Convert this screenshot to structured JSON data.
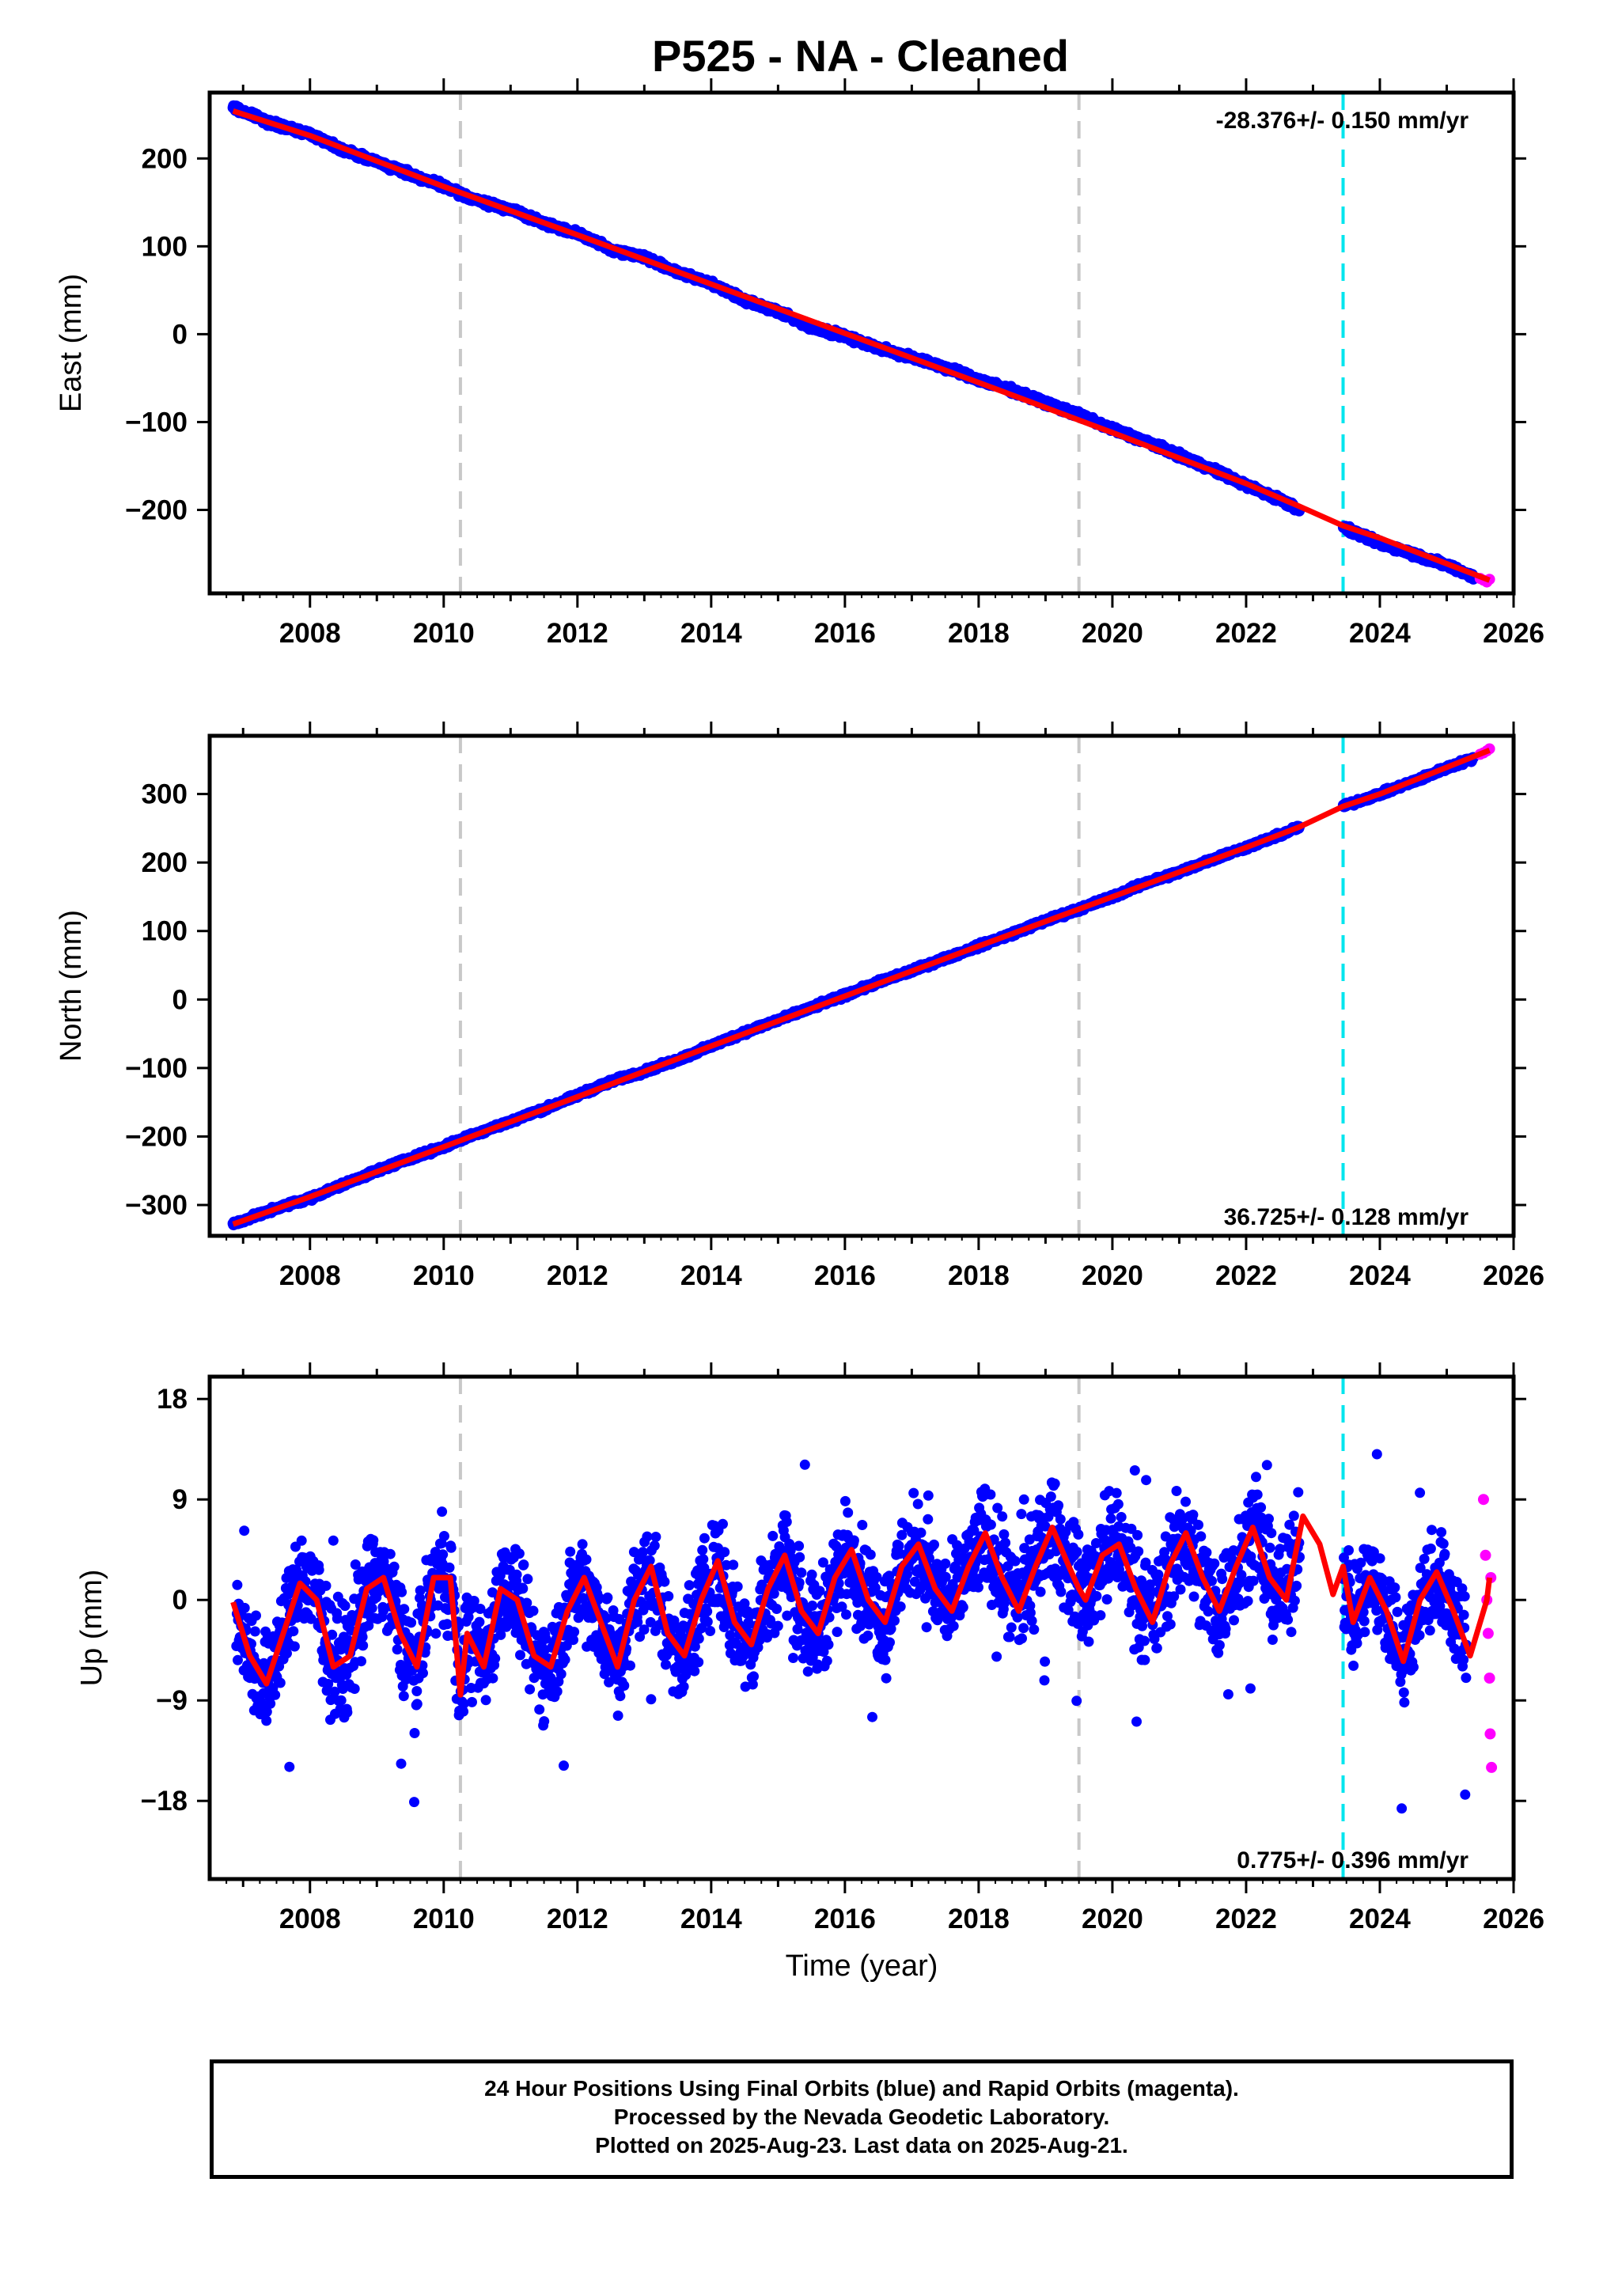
{
  "title": "P525  - NA - Cleaned",
  "footer": {
    "line1": "24 Hour Positions Using Final Orbits (blue) and Rapid Orbits (magenta).",
    "line2": "Processed by the Nevada Geodetic Laboratory.",
    "line3": "Plotted on 2025-Aug-23. Last data on 2025-Aug-21."
  },
  "colors": {
    "final": "#0000ff",
    "rapid": "#ff00ff",
    "model": "#ff0000",
    "equipment_change": "#c8c8c8",
    "earthquake": "#00e5ee"
  },
  "chart_data": [
    {
      "type": "scatter",
      "panel": "east",
      "ylabel": "East (mm)",
      "xlabel": "",
      "xlim": [
        2006.5,
        2026.0
      ],
      "ylim": [
        -295,
        275
      ],
      "x_ticks": [
        2008,
        2010,
        2012,
        2014,
        2016,
        2018,
        2020,
        2022,
        2024,
        2026
      ],
      "y_ticks": [
        200,
        100,
        0,
        -100,
        -200
      ],
      "y_tick_labels": [
        "200",
        "100",
        "0",
        "−100",
        "−200"
      ],
      "rate": "-28.376+/- 0.150 mm/yr",
      "rate_position": "top-right",
      "equipment_change_years": [
        2010.25,
        2019.5
      ],
      "earthquake_years": [
        2023.45
      ],
      "data_gap": [
        2022.8,
        2023.45
      ],
      "series": [
        {
          "kind": "final",
          "x": [
            2006.85,
            2007.5,
            2008.0,
            2008.5,
            2009.0,
            2009.5,
            2010.0,
            2010.5,
            2011.0,
            2011.5,
            2012.0,
            2012.5,
            2013.0,
            2013.5,
            2014.0,
            2014.5,
            2015.0,
            2015.5,
            2016.0,
            2016.5,
            2017.0,
            2017.5,
            2018.0,
            2018.5,
            2019.0,
            2019.5,
            2020.0,
            2020.5,
            2021.0,
            2021.5,
            2022.0,
            2022.5,
            2022.8,
            2023.45,
            2024.0,
            2024.5,
            2025.0,
            2025.4
          ],
          "y": [
            258,
            238,
            228,
            210,
            196,
            182,
            168,
            152,
            142,
            126,
            115,
            96,
            88,
            70,
            58,
            38,
            26,
            8,
            -2,
            -16,
            -26,
            -38,
            -52,
            -64,
            -78,
            -92,
            -108,
            -122,
            -138,
            -154,
            -172,
            -188,
            -200,
            -220,
            -238,
            -250,
            -263,
            -276
          ]
        },
        {
          "kind": "rapid",
          "x": [
            2025.5,
            2025.55,
            2025.6,
            2025.64
          ],
          "y": [
            -278,
            -280,
            -282,
            -279
          ]
        }
      ],
      "model": {
        "x": [
          2006.85,
          2008.0,
          2010.0,
          2012.0,
          2014.0,
          2016.0,
          2018.0,
          2020.0,
          2022.0,
          2022.8,
          2023.45,
          2024.0,
          2025.64
        ],
        "y": [
          254,
          226,
          168,
          113,
          57,
          1,
          -55,
          -112,
          -170,
          -196,
          -218,
          -232,
          -280
        ]
      }
    },
    {
      "type": "scatter",
      "panel": "north",
      "ylabel": "North (mm)",
      "xlabel": "",
      "xlim": [
        2006.5,
        2026.0
      ],
      "ylim": [
        -345,
        385
      ],
      "x_ticks": [
        2008,
        2010,
        2012,
        2014,
        2016,
        2018,
        2020,
        2022,
        2024,
        2026
      ],
      "y_ticks": [
        300,
        200,
        100,
        0,
        -100,
        -200,
        -300
      ],
      "y_tick_labels": [
        "300",
        "200",
        "100",
        "0",
        "−100",
        "−200",
        "−300"
      ],
      "rate": "36.725+/- 0.128 mm/yr",
      "rate_position": "bottom-right",
      "equipment_change_years": [
        2010.25,
        2019.5
      ],
      "earthquake_years": [
        2023.45
      ],
      "data_gap": [
        2022.8,
        2023.45
      ],
      "series": [
        {
          "kind": "final",
          "x": [
            2006.85,
            2007.5,
            2008.0,
            2008.5,
            2009.0,
            2009.5,
            2010.0,
            2010.5,
            2011.0,
            2011.5,
            2012.0,
            2012.5,
            2013.0,
            2013.5,
            2014.0,
            2014.5,
            2015.0,
            2015.5,
            2016.0,
            2016.5,
            2017.0,
            2017.5,
            2018.0,
            2018.5,
            2019.0,
            2019.5,
            2020.0,
            2020.5,
            2021.0,
            2021.5,
            2022.0,
            2022.5,
            2022.8,
            2023.45,
            2024.0,
            2024.5,
            2025.0,
            2025.4
          ],
          "y": [
            -328,
            -305,
            -290,
            -270,
            -250,
            -232,
            -215,
            -195,
            -178,
            -160,
            -140,
            -120,
            -105,
            -88,
            -68,
            -48,
            -30,
            -12,
            6,
            25,
            42,
            60,
            78,
            96,
            115,
            132,
            150,
            170,
            186,
            205,
            222,
            240,
            252,
            282,
            300,
            318,
            338,
            352
          ]
        },
        {
          "kind": "rapid",
          "x": [
            2025.5,
            2025.55,
            2025.6,
            2025.64
          ],
          "y": [
            358,
            360,
            363,
            366
          ]
        }
      ],
      "model": {
        "x": [
          2006.85,
          2008.0,
          2010.0,
          2012.0,
          2014.0,
          2016.0,
          2018.0,
          2020.0,
          2022.0,
          2022.8,
          2023.45,
          2024.0,
          2025.64
        ],
        "y": [
          -328,
          -288,
          -215,
          -142,
          -68,
          5,
          78,
          150,
          222,
          252,
          282,
          300,
          364
        ]
      }
    },
    {
      "type": "scatter",
      "panel": "up",
      "ylabel": "Up (mm)",
      "xlabel": "Time (year)",
      "xlim": [
        2006.5,
        2026.0
      ],
      "ylim": [
        -25,
        20
      ],
      "x_ticks": [
        2008,
        2010,
        2012,
        2014,
        2016,
        2018,
        2020,
        2022,
        2024,
        2026
      ],
      "y_ticks": [
        18,
        9,
        0,
        -9,
        -18
      ],
      "y_tick_labels": [
        "18",
        "9",
        "0",
        "−9",
        "−18"
      ],
      "rate": "0.775+/- 0.396 mm/yr",
      "rate_position": "bottom-right",
      "equipment_change_years": [
        2010.25,
        2019.5
      ],
      "earthquake_years": [
        2023.45
      ],
      "data_gap": [
        2022.8,
        2023.45
      ],
      "series": [
        {
          "kind": "final",
          "x": [
            2006.9,
            2007.2,
            2007.7,
            2008.2,
            2008.7,
            2009.2,
            2009.8,
            2010.3,
            2010.8,
            2011.3,
            2011.8,
            2012.3,
            2012.8,
            2013.3,
            2013.8,
            2014.3,
            2014.8,
            2015.3,
            2015.8,
            2016.3,
            2016.8,
            2017.3,
            2017.8,
            2018.3,
            2018.8,
            2019.3,
            2019.8,
            2020.3,
            2020.8,
            2021.3,
            2021.8,
            2022.3,
            2022.7,
            2023.5,
            2023.9,
            2024.3,
            2024.8,
            2025.3
          ],
          "y": [
            2,
            -8,
            4,
            -9,
            3,
            -6,
            4,
            -10,
            2,
            -8,
            3,
            -9,
            4,
            -7,
            5,
            -6,
            6,
            -5,
            7,
            -4,
            8,
            -3,
            8,
            -2,
            9,
            -1,
            7,
            -3,
            8,
            -2,
            9,
            -1,
            9,
            -3,
            3,
            -8,
            4,
            -9
          ]
        },
        {
          "kind": "rapid",
          "x": [
            2025.55,
            2025.58,
            2025.6,
            2025.62,
            2025.64,
            2025.65,
            2025.66,
            2025.67
          ],
          "y": [
            9,
            4,
            0,
            -3,
            -7,
            -12,
            2,
            -15
          ]
        }
      ],
      "model": {
        "x": [
          2006.85,
          2007.1,
          2007.35,
          2007.6,
          2007.85,
          2008.1,
          2008.35,
          2008.6,
          2008.85,
          2009.1,
          2009.35,
          2009.6,
          2009.85,
          2010.1,
          2010.25,
          2010.35,
          2010.6,
          2010.85,
          2011.1,
          2011.35,
          2011.6,
          2011.85,
          2012.1,
          2012.35,
          2012.6,
          2012.85,
          2013.1,
          2013.35,
          2013.6,
          2013.85,
          2014.1,
          2014.35,
          2014.6,
          2014.85,
          2015.1,
          2015.35,
          2015.6,
          2015.85,
          2016.1,
          2016.35,
          2016.6,
          2016.85,
          2017.1,
          2017.35,
          2017.6,
          2017.85,
          2018.1,
          2018.35,
          2018.6,
          2018.85,
          2019.1,
          2019.35,
          2019.5,
          2019.6,
          2019.85,
          2020.1,
          2020.35,
          2020.6,
          2020.85,
          2021.1,
          2021.35,
          2021.6,
          2021.85,
          2022.1,
          2022.35,
          2022.6,
          2022.85,
          2023.1,
          2023.3,
          2023.45,
          2023.6,
          2023.85,
          2024.1,
          2024.35,
          2024.6,
          2024.85,
          2025.1,
          2025.35,
          2025.6,
          2025.64
        ],
        "y": [
          -0.2,
          -5,
          -7.5,
          -3,
          1.5,
          0,
          -6,
          -5,
          1,
          2,
          -3,
          -6,
          2,
          2,
          -8.5,
          -3,
          -6,
          1,
          0,
          -5,
          -6,
          -1,
          2,
          -2,
          -6,
          0,
          3,
          -3,
          -5,
          0,
          3.5,
          -2,
          -4,
          1,
          4,
          -1,
          -3,
          2,
          4.5,
          0,
          -2,
          3,
          5,
          1,
          -1,
          3,
          6,
          2,
          -1,
          3,
          6.5,
          3,
          1,
          0,
          4,
          5,
          1,
          -2,
          3,
          6,
          2,
          -1,
          3,
          6.5,
          2,
          0,
          7.5,
          5,
          0.5,
          3,
          -2,
          2,
          -1,
          -5.5,
          0,
          2.5,
          -1,
          -5,
          0,
          2
        ]
      }
    }
  ]
}
